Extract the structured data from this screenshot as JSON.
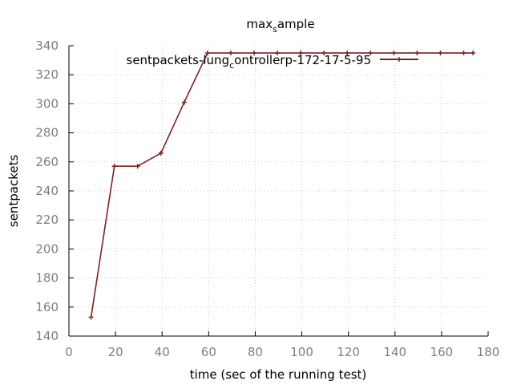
{
  "chart_data": {
    "type": "line",
    "title": "max_sample",
    "xlabel": "time (sec of the running test)",
    "ylabel": "sentpackets",
    "xlim": [
      0,
      180
    ],
    "ylim": [
      140,
      340
    ],
    "x_ticks": [
      "0",
      "20",
      "40",
      "60",
      "80",
      "100",
      "120",
      "140",
      "160",
      "180"
    ],
    "y_ticks": [
      "140",
      "160",
      "180",
      "200",
      "220",
      "240",
      "260",
      "280",
      "300",
      "320",
      "340"
    ],
    "grid": true,
    "legend_position": "top-right",
    "series": [
      {
        "name": "sentpackets-lung_controllerp-172-17-5-95",
        "color": "#7f1f1f",
        "x": [
          9.5,
          19.5,
          29.5,
          39.5,
          49.5,
          59.5,
          69.5,
          79.5,
          89.5,
          99.5,
          109.5,
          119.5,
          129.5,
          139.5,
          149.5,
          159.5,
          169.5,
          173.5
        ],
        "y": [
          153,
          257,
          257,
          266,
          301,
          335,
          335,
          335,
          335,
          335,
          335,
          335,
          335,
          335,
          335,
          335,
          335,
          335
        ]
      }
    ]
  }
}
